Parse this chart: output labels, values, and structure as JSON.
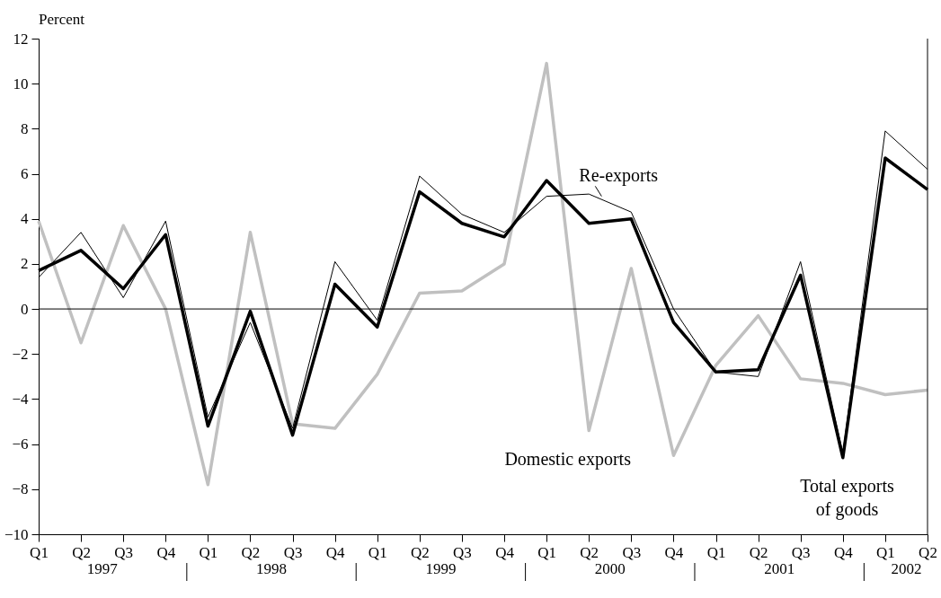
{
  "chart_data": {
    "type": "line",
    "ylabel": "Percent",
    "categories": [
      "Q1",
      "Q2",
      "Q3",
      "Q4",
      "Q1",
      "Q2",
      "Q3",
      "Q4",
      "Q1",
      "Q2",
      "Q3",
      "Q4",
      "Q1",
      "Q2",
      "Q3",
      "Q4",
      "Q1",
      "Q2",
      "Q3",
      "Q4",
      "Q1",
      "Q2"
    ],
    "series": [
      {
        "name": "Domestic exports",
        "color": "#c0c0c0",
        "values": [
          3.9,
          -1.5,
          3.7,
          0.0,
          -7.8,
          3.4,
          -5.1,
          -5.3,
          -2.9,
          0.7,
          0.8,
          2.0,
          10.9,
          -5.4,
          1.8,
          -6.5,
          -2.5,
          -0.3,
          -3.1,
          -3.3,
          -3.8,
          -3.6
        ]
      },
      {
        "name": "Re-exports",
        "color": "#000000",
        "values": [
          1.4,
          3.4,
          0.5,
          3.9,
          -4.8,
          -0.6,
          -5.3,
          2.1,
          -0.5,
          5.9,
          4.2,
          3.4,
          5.0,
          5.1,
          4.3,
          0.0,
          -2.8,
          -3.0,
          2.1,
          -6.4,
          7.9,
          6.2
        ]
      },
      {
        "name": "Total exports of goods",
        "color": "#000000",
        "values": [
          1.7,
          2.6,
          0.9,
          3.3,
          -5.2,
          -0.1,
          -5.6,
          1.1,
          -0.8,
          5.2,
          3.8,
          3.2,
          5.7,
          3.8,
          4.0,
          -0.6,
          -2.8,
          -2.7,
          1.5,
          -6.6,
          6.7,
          5.3
        ]
      }
    ],
    "ylim": [
      -10,
      12
    ],
    "yticks": [
      -10,
      -8,
      -6,
      -4,
      -2,
      0,
      2,
      4,
      6,
      8,
      10,
      12
    ],
    "ref_lines": [
      {
        "axis": "y",
        "value": 0,
        "color": "#000000"
      }
    ],
    "annotations": [
      "1997",
      "1998",
      "1999",
      "2000",
      "2001",
      "2002"
    ],
    "marker": "none",
    "line_style": "solid"
  }
}
